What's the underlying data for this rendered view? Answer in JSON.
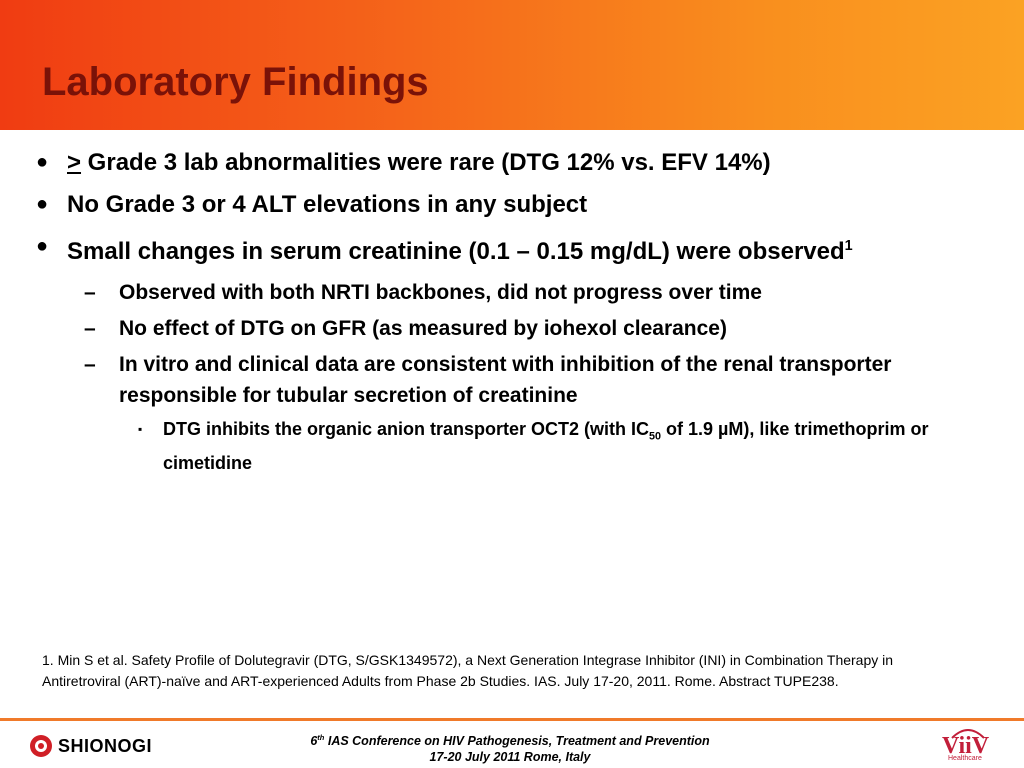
{
  "slide": {
    "title": "Laboratory Findings",
    "bullets": [
      {
        "prefix": ">",
        "text": " Grade 3 lab abnormalities were rare (DTG 12% vs. EFV 14%)"
      },
      {
        "text": "No Grade 3 or 4 ALT elevations in any subject"
      },
      {
        "text": "Small changes in serum creatinine (0.1 – 0.15 mg/dL) were observed",
        "sup": "1"
      }
    ],
    "sub_bullets": [
      "Observed with both NRTI backbones, did not progress over time",
      "No effect of DTG on GFR (as measured by iohexol clearance)",
      "In vitro and clinical data are consistent with inhibition of the renal transporter responsible for tubular secretion of creatinine"
    ],
    "sub_sub_bullet": {
      "before": "DTG  inhibits the organic anion transporter OCT2 (with IC",
      "subscript": "50",
      "after": " of 1.9 µM), like trimethoprim or cimetidine"
    },
    "bullet_symbols": {
      "level1": "●",
      "level2": "–",
      "level3": "▪"
    },
    "footnote": "1. Min S et al. Safety Profile of Dolutegravir (DTG, S/GSK1349572), a Next Generation Integrase Inhibitor (INI) in Combination Therapy in Antiretroviral (ART)-naïve and ART-experienced Adults from Phase 2b Studies. IAS. July 17-20, 2011. Rome. Abstract TUPE238."
  },
  "footer": {
    "conf_num": "6",
    "conf_sup": "th",
    "conf_rest": " IAS Conference on HIV Pathogenesis, Treatment and Prevention",
    "date_line": "17-20 July 2011 Rome, Italy",
    "logo_left": "SHIONOGI",
    "logo_right": "ViiV",
    "logo_right_sub": "Healthcare"
  },
  "colors": {
    "title": "#7a1208",
    "accent": "#f07a2a",
    "logo_red": "#d01f26"
  }
}
